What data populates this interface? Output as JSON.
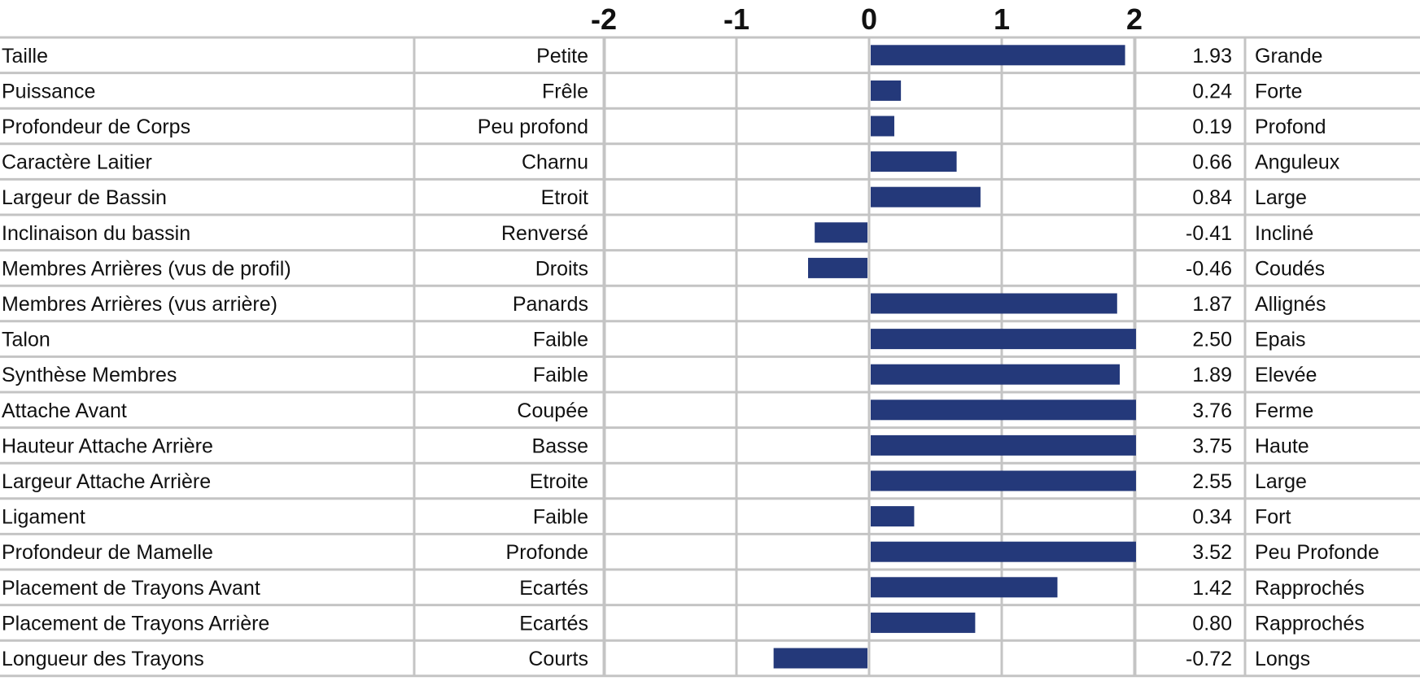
{
  "chart_data": {
    "type": "bar",
    "orientation": "horizontal",
    "xlim": [
      -2,
      2
    ],
    "ticks": [
      -2,
      -1,
      0,
      1,
      2
    ],
    "grid": true,
    "bar_color": "#24397a",
    "rows": [
      {
        "trait": "Taille",
        "low": "Petite",
        "value": 1.93,
        "value_label": "1.93",
        "high": "Grande"
      },
      {
        "trait": "Puissance",
        "low": "Frêle",
        "value": 0.24,
        "value_label": "0.24",
        "high": "Forte"
      },
      {
        "trait": "Profondeur de Corps",
        "low": "Peu profond",
        "value": 0.19,
        "value_label": "0.19",
        "high": "Profond"
      },
      {
        "trait": "Caractère Laitier",
        "low": "Charnu",
        "value": 0.66,
        "value_label": "0.66",
        "high": "Anguleux"
      },
      {
        "trait": "Largeur de Bassin",
        "low": "Etroit",
        "value": 0.84,
        "value_label": "0.84",
        "high": "Large"
      },
      {
        "trait": "Inclinaison du bassin",
        "low": "Renversé",
        "value": -0.41,
        "value_label": "-0.41",
        "high": "Incliné"
      },
      {
        "trait": "Membres Arrières (vus de profil)",
        "low": "Droits",
        "value": -0.46,
        "value_label": "-0.46",
        "high": "Coudés"
      },
      {
        "trait": "Membres Arrières (vus arrière)",
        "low": "Panards",
        "value": 1.87,
        "value_label": "1.87",
        "high": "Allignés"
      },
      {
        "trait": "Talon",
        "low": "Faible",
        "value": 2.5,
        "value_label": "2.50",
        "high": "Epais"
      },
      {
        "trait": "Synthèse Membres",
        "low": "Faible",
        "value": 1.89,
        "value_label": "1.89",
        "high": "Elevée"
      },
      {
        "trait": "Attache Avant",
        "low": "Coupée",
        "value": 3.76,
        "value_label": "3.76",
        "high": "Ferme"
      },
      {
        "trait": "Hauteur Attache Arrière",
        "low": "Basse",
        "value": 3.75,
        "value_label": "3.75",
        "high": "Haute"
      },
      {
        "trait": "Largeur Attache Arrière",
        "low": "Etroite",
        "value": 2.55,
        "value_label": "2.55",
        "high": "Large"
      },
      {
        "trait": "Ligament",
        "low": "Faible",
        "value": 0.34,
        "value_label": "0.34",
        "high": "Fort"
      },
      {
        "trait": "Profondeur de Mamelle",
        "low": "Profonde",
        "value": 3.52,
        "value_label": "3.52",
        "high": "Peu Profonde"
      },
      {
        "trait": "Placement de Trayons Avant",
        "low": "Ecartés",
        "value": 1.42,
        "value_label": "1.42",
        "high": "Rapprochés"
      },
      {
        "trait": "Placement de Trayons Arrière",
        "low": "Ecartés",
        "value": 0.8,
        "value_label": "0.80",
        "high": "Rapprochés"
      },
      {
        "trait": "Longueur des Trayons",
        "low": "Courts",
        "value": -0.72,
        "value_label": "-0.72",
        "high": "Longs"
      }
    ]
  }
}
